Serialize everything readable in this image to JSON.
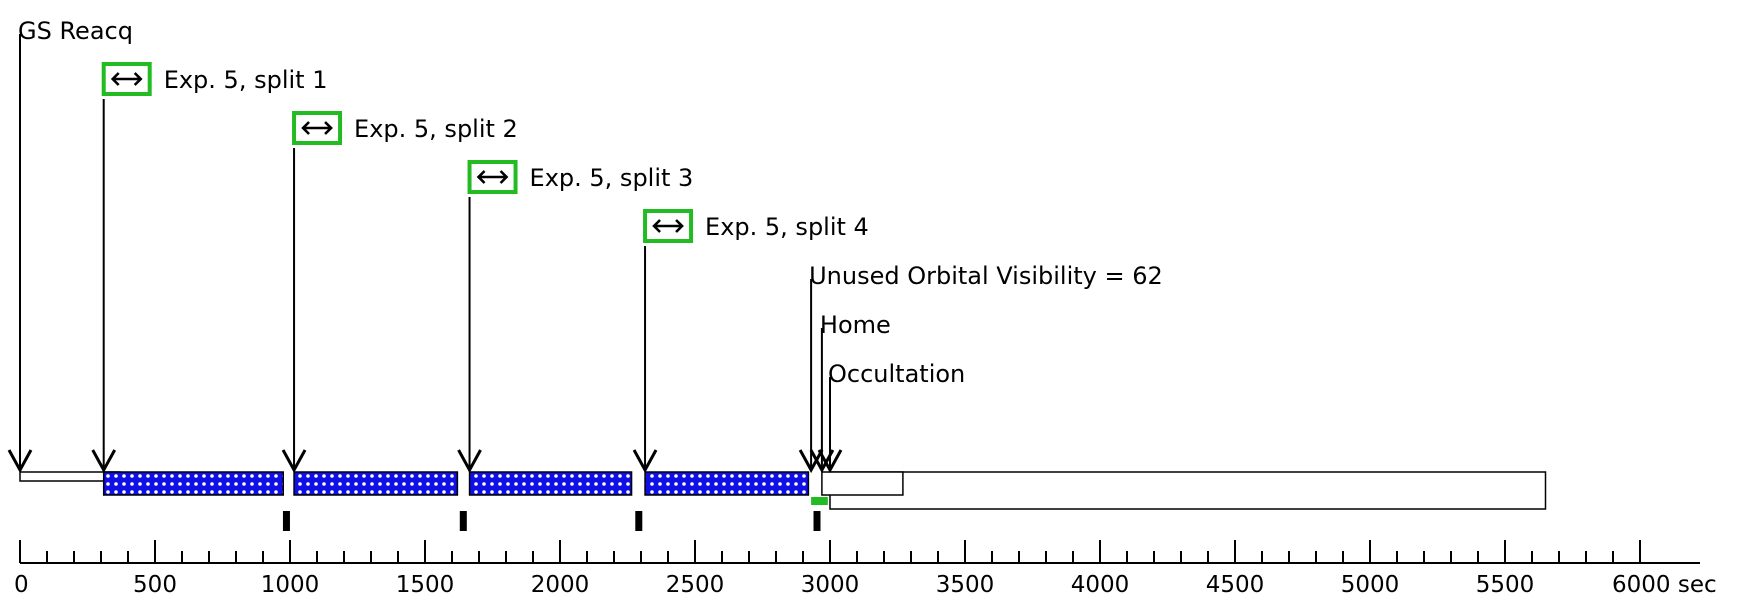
{
  "timeline": {
    "axis": {
      "min": 0,
      "max": 6000,
      "major_ticks": [
        0,
        500,
        1000,
        1500,
        2000,
        2500,
        3000,
        3500,
        4000,
        4500,
        5000,
        5500,
        6000
      ],
      "tick_labels": [
        "0",
        "500",
        "1000",
        "1500",
        "2000",
        "2500",
        "3000",
        "3500",
        "4000",
        "4500",
        "5000",
        "5500",
        "6000 sec"
      ],
      "minor_step": 100
    },
    "events": [
      {
        "label": "GS Reacq",
        "time": 0,
        "icon": false,
        "icon_name": ""
      },
      {
        "label": "Exp. 5, split 1",
        "time": 310,
        "icon": true,
        "icon_name": "double-arrow-icon"
      },
      {
        "label": "Exp. 5, split 2",
        "time": 1015,
        "icon": true,
        "icon_name": "double-arrow-icon"
      },
      {
        "label": "Exp. 5, split 3",
        "time": 1665,
        "icon": true,
        "icon_name": "double-arrow-icon"
      },
      {
        "label": "Exp. 5, split 4",
        "time": 2315,
        "icon": true,
        "icon_name": "double-arrow-icon"
      },
      {
        "label": "Unused Orbital Visibility = 62",
        "time": 2930,
        "icon": false,
        "icon_name": ""
      },
      {
        "label": "Home",
        "time": 2970,
        "icon": false,
        "icon_name": ""
      },
      {
        "label": "Occultation",
        "time": 3000,
        "icon": false,
        "icon_name": ""
      }
    ],
    "bars": {
      "gs_reacq": {
        "start": 0,
        "end": 370
      },
      "exposures": [
        {
          "start": 310,
          "end": 975
        },
        {
          "start": 1015,
          "end": 1620
        },
        {
          "start": 1665,
          "end": 2265
        },
        {
          "start": 2315,
          "end": 2920
        }
      ],
      "home": {
        "start": 2970,
        "end": 3270
      },
      "occultation": {
        "start": 3000,
        "end": 5650
      },
      "unused_visibility": {
        "start": 2930,
        "end": 2992
      }
    },
    "markers": [
      985,
      1640,
      2290,
      2950
    ],
    "colors": {
      "exposure_fill": "#1010e6",
      "icon_border": "#22bb22",
      "unused_fill": "#22bb22",
      "stroke": "#000000"
    }
  }
}
